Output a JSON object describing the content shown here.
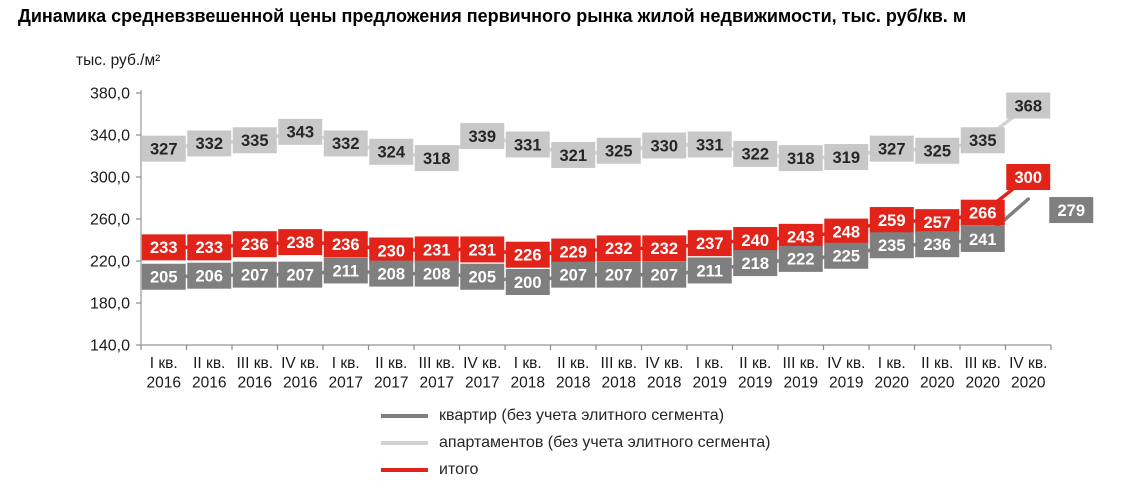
{
  "title": "Динамика средневзвешенной цены предложения первичного рынка жилой недвижимости, тыс. руб/кв. м",
  "chart_data": {
    "type": "line",
    "title": "Динамика средневзвешенной цены предложения первичного рынка жилой недвижимости, тыс. руб/кв. м",
    "xlabel": "",
    "ylabel": "тыс. руб./м²",
    "ylim": [
      140,
      380
    ],
    "ytick_labels": [
      "380,0",
      "340,0",
      "300,0",
      "260,0",
      "220,0",
      "180,0",
      "140,0"
    ],
    "grid": false,
    "data_labels": true,
    "legend_position": "bottom-center",
    "categories": [
      {
        "quarter": "I кв.",
        "year": "2016"
      },
      {
        "quarter": "II кв.",
        "year": "2016"
      },
      {
        "quarter": "III кв.",
        "year": "2016"
      },
      {
        "quarter": "IV кв.",
        "year": "2016"
      },
      {
        "quarter": "I кв.",
        "year": "2017"
      },
      {
        "quarter": "II кв.",
        "year": "2017"
      },
      {
        "quarter": "III кв.",
        "year": "2017"
      },
      {
        "quarter": "IV кв.",
        "year": "2017"
      },
      {
        "quarter": "I кв.",
        "year": "2018"
      },
      {
        "quarter": "II кв.",
        "year": "2018"
      },
      {
        "quarter": "III кв.",
        "year": "2018"
      },
      {
        "quarter": "IV кв.",
        "year": "2018"
      },
      {
        "quarter": "I кв.",
        "year": "2019"
      },
      {
        "quarter": "II кв.",
        "year": "2019"
      },
      {
        "quarter": "III кв.",
        "year": "2019"
      },
      {
        "quarter": "IV кв.",
        "year": "2019"
      },
      {
        "quarter": "I кв.",
        "year": "2020"
      },
      {
        "quarter": "II кв.",
        "year": "2020"
      },
      {
        "quarter": "III кв.",
        "year": "2020"
      },
      {
        "quarter": "IV кв.",
        "year": "2020"
      }
    ],
    "series": [
      {
        "key": "flats",
        "name": "квартир (без учета элитного сегмента)",
        "color": "#7f7f7f",
        "label_bg": "#7f7f7f",
        "label_color": "#ffffff",
        "values": [
          205,
          206,
          207,
          207,
          211,
          208,
          208,
          205,
          200,
          207,
          207,
          207,
          211,
          218,
          222,
          225,
          235,
          236,
          241,
          279
        ]
      },
      {
        "key": "apartments",
        "name": "апартаментов (без учета элитного сегмента)",
        "color": "#d2d2d2",
        "label_bg": "#c8c8c8",
        "label_color": "#262626",
        "values": [
          327,
          332,
          335,
          343,
          332,
          324,
          318,
          339,
          331,
          321,
          325,
          330,
          331,
          322,
          318,
          319,
          327,
          325,
          335,
          368
        ]
      },
      {
        "key": "total",
        "name": "итого",
        "color": "#e2231a",
        "label_bg": "#e2231a",
        "label_color": "#ffffff",
        "values": [
          233,
          233,
          236,
          238,
          236,
          230,
          231,
          231,
          226,
          229,
          232,
          232,
          237,
          240,
          243,
          248,
          259,
          257,
          266,
          300
        ]
      }
    ]
  }
}
